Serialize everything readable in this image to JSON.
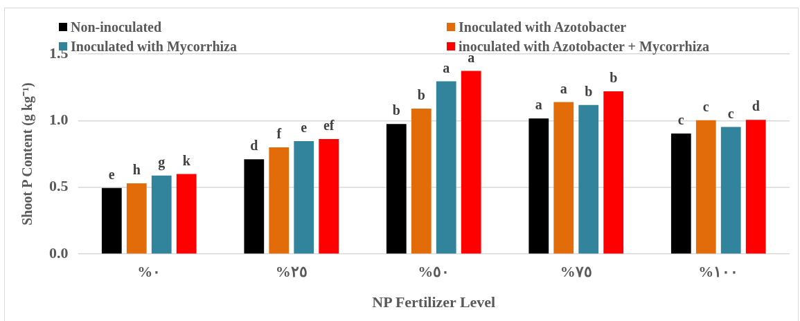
{
  "chart_data": {
    "type": "bar",
    "xlabel": "NP Fertilizer Level",
    "ylabel": "Shoot P Content (g kg⁻¹)",
    "categories": [
      "%٠",
      "%٢٥",
      "%٥٠",
      "%٧٥",
      "%١٠٠"
    ],
    "series": [
      {
        "name": "Non-inoculated",
        "color": "#000000",
        "values": [
          0.495,
          0.71,
          0.975,
          1.016,
          0.903
        ],
        "value_labels": [
          "e",
          "d",
          "b",
          "a",
          "c"
        ]
      },
      {
        "name": "Inoculated with Azotobacter",
        "color": "#e36c0a",
        "values": [
          0.53,
          0.8,
          1.09,
          1.139,
          1.003
        ],
        "value_labels": [
          "h",
          "f",
          "b",
          "a",
          "c"
        ]
      },
      {
        "name": "Inoculated with Mycorrhiza",
        "color": "#31849b",
        "values": [
          0.588,
          0.846,
          1.295,
          1.117,
          0.953
        ],
        "value_labels": [
          "g",
          "e",
          "a",
          "b",
          "c"
        ]
      },
      {
        "name": "inoculated with Azotobacter + Mycorrhiza",
        "color": "#ff0000",
        "values": [
          0.6,
          0.862,
          1.373,
          1.22,
          1.006
        ],
        "value_labels": [
          "k",
          "ef",
          "a",
          "b",
          "d"
        ]
      }
    ],
    "ylim": [
      0,
      1.5
    ],
    "yticks": [
      {
        "value": 0,
        "label": "0.0"
      },
      {
        "value": 0.5,
        "label": "0.5"
      },
      {
        "value": 1,
        "label": "1.0"
      },
      {
        "value": 1.5,
        "label": "1.5"
      }
    ],
    "grid": "y",
    "legend": "top"
  }
}
